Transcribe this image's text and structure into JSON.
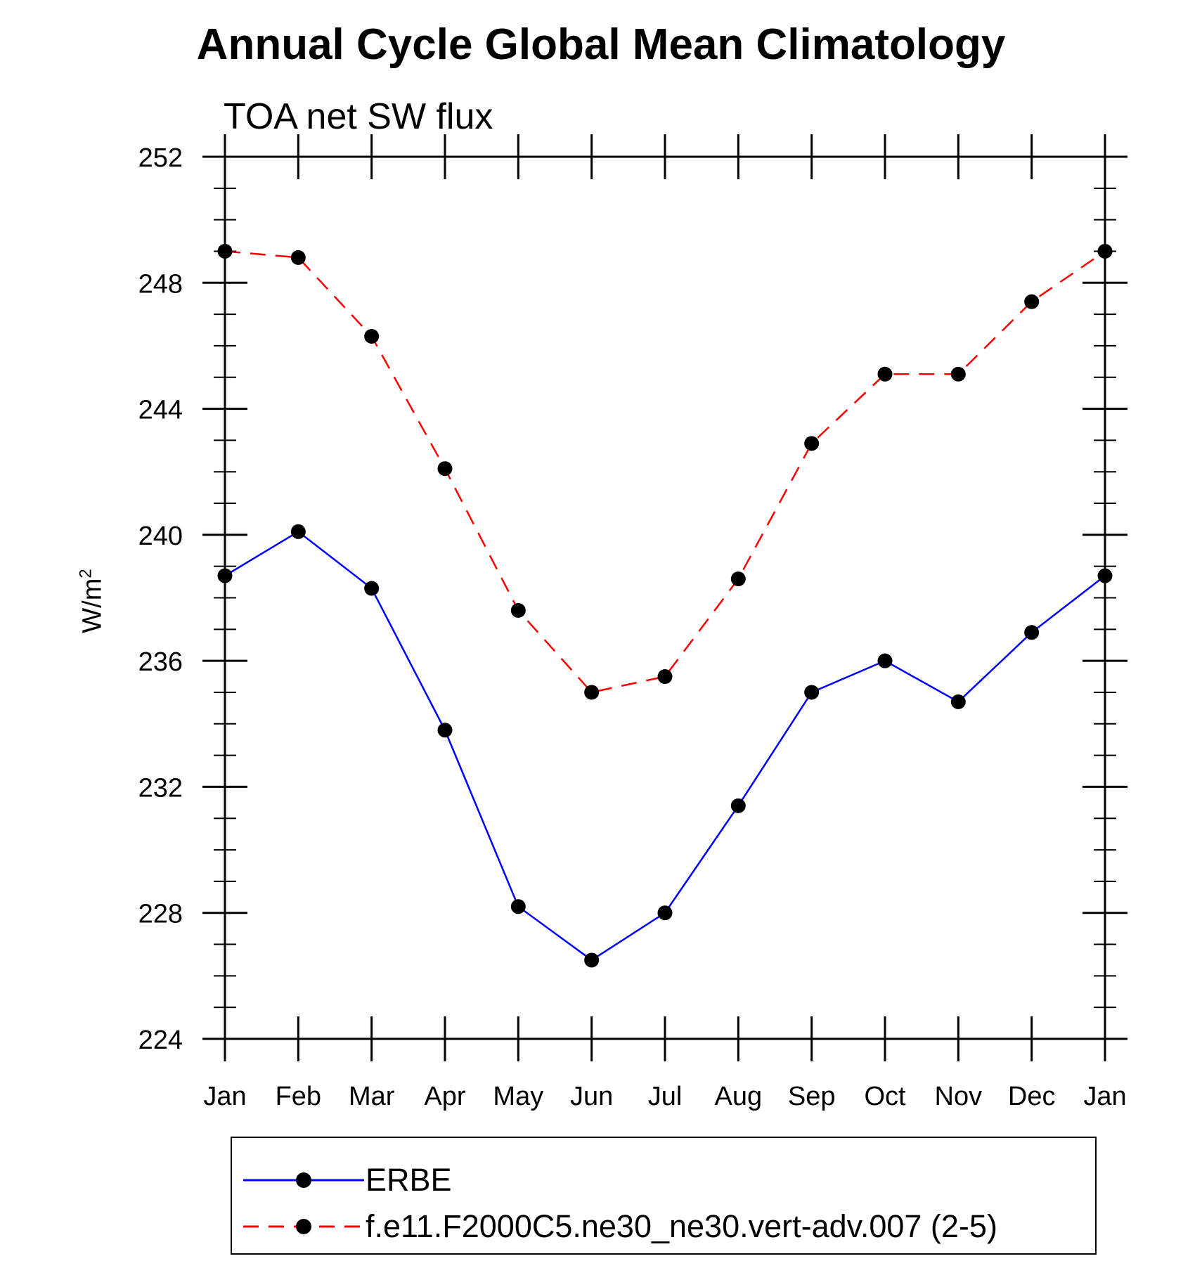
{
  "chart_data": {
    "type": "line",
    "title": "Annual Cycle Global Mean Climatology",
    "subtitle": "TOA net SW flux",
    "ylabel": "W/m",
    "ylabel_sup": "2",
    "xlabel": "",
    "ylim": [
      224,
      252
    ],
    "yticks": [
      224,
      228,
      232,
      236,
      240,
      244,
      248,
      252
    ],
    "categories": [
      "Jan",
      "Feb",
      "Mar",
      "Apr",
      "May",
      "Jun",
      "Jul",
      "Aug",
      "Sep",
      "Oct",
      "Nov",
      "Dec",
      "Jan"
    ],
    "series": [
      {
        "name": "ERBE",
        "color": "#0000ff",
        "dash": "solid",
        "values": [
          238.7,
          240.1,
          238.3,
          233.8,
          228.2,
          226.5,
          228.0,
          231.4,
          235.0,
          236.0,
          234.7,
          236.9,
          238.7
        ]
      },
      {
        "name": "f.e11.F2000C5.ne30_ne30.vert-adv.007 (2-5)",
        "color": "#ff0000",
        "dash": "dashed",
        "values": [
          249.0,
          248.8,
          246.3,
          242.1,
          237.6,
          235.0,
          235.5,
          238.6,
          242.9,
          245.1,
          245.1,
          247.4,
          249.0
        ]
      }
    ],
    "legend_position": "bottom-center",
    "grid": false
  }
}
